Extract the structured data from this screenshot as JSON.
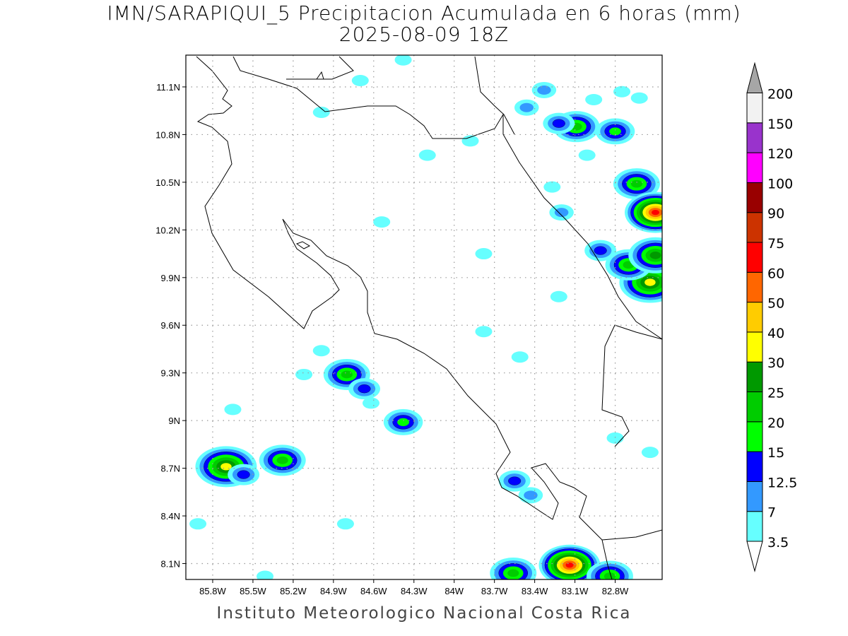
{
  "title_line1": "IMN/SARAPIQUI_5 Precipitacion Acumulada en 6 horas (mm)",
  "title_line2": "2025-08-09 18Z",
  "footer": "Instituto Meteorologico Nacional Costa Rica",
  "chart_data": {
    "type": "heatmap",
    "title": "IMN/SARAPIQUI_5 Precipitacion Acumulada en 6 horas (mm)",
    "subtitle": "2025-08-09 18Z",
    "xlim": [
      -86.0,
      -82.45
    ],
    "ylim": [
      8.0,
      11.3
    ],
    "grid": true,
    "x_ticks": [
      {
        "v": -85.8,
        "label": "85.8W"
      },
      {
        "v": -85.5,
        "label": "85.5W"
      },
      {
        "v": -85.2,
        "label": "85.2W"
      },
      {
        "v": -84.9,
        "label": "84.9W"
      },
      {
        "v": -84.6,
        "label": "84.6W"
      },
      {
        "v": -84.3,
        "label": "84.3W"
      },
      {
        "v": -84.0,
        "label": "84W"
      },
      {
        "v": -83.7,
        "label": "83.7W"
      },
      {
        "v": -83.4,
        "label": "83.4W"
      },
      {
        "v": -83.1,
        "label": "83.1W"
      },
      {
        "v": -82.8,
        "label": "82.8W"
      }
    ],
    "y_ticks": [
      {
        "v": 11.1,
        "label": "11.1N"
      },
      {
        "v": 10.8,
        "label": "10.8N"
      },
      {
        "v": 10.5,
        "label": "10.5N"
      },
      {
        "v": 10.2,
        "label": "10.2N"
      },
      {
        "v": 9.9,
        "label": "9.9N"
      },
      {
        "v": 9.6,
        "label": "9.6N"
      },
      {
        "v": 9.3,
        "label": "9.3N"
      },
      {
        "v": 9.0,
        "label": "9N"
      },
      {
        "v": 8.7,
        "label": "8.7N"
      },
      {
        "v": 8.4,
        "label": "8.4N"
      },
      {
        "v": 8.1,
        "label": "8.1N"
      }
    ],
    "colorbar": {
      "levels": [
        "3.5",
        "7",
        "12.5",
        "15",
        "20",
        "25",
        "30",
        "40",
        "50",
        "60",
        "75",
        "90",
        "100",
        "120",
        "150",
        "200"
      ],
      "colors": [
        "#66ffff",
        "#3399ff",
        "#0000ff",
        "#00ff00",
        "#00cc00",
        "#009900",
        "#ffff00",
        "#ffcc00",
        "#ff6600",
        "#ff0000",
        "#cc3300",
        "#990000",
        "#ff00ff",
        "#9933cc",
        "#f2f2f2"
      ],
      "over_color": "#a6a6a6",
      "under_color": "#ffffff"
    },
    "precip_cells": [
      {
        "lon": -84.38,
        "lat": 11.27,
        "mm": 5
      },
      {
        "lon": -84.7,
        "lat": 11.14,
        "mm": 5
      },
      {
        "lon": -84.99,
        "lat": 10.94,
        "mm": 4
      },
      {
        "lon": -83.33,
        "lat": 11.08,
        "mm": 8
      },
      {
        "lon": -83.46,
        "lat": 10.97,
        "mm": 8
      },
      {
        "lon": -83.09,
        "lat": 10.85,
        "mm": 22
      },
      {
        "lon": -83.22,
        "lat": 10.87,
        "mm": 14
      },
      {
        "lon": -82.8,
        "lat": 10.82,
        "mm": 16
      },
      {
        "lon": -82.75,
        "lat": 11.07,
        "mm": 5
      },
      {
        "lon": -82.62,
        "lat": 11.03,
        "mm": 5
      },
      {
        "lon": -82.96,
        "lat": 11.02,
        "mm": 5
      },
      {
        "lon": -83.01,
        "lat": 10.67,
        "mm": 5
      },
      {
        "lon": -83.88,
        "lat": 10.76,
        "mm": 4
      },
      {
        "lon": -84.2,
        "lat": 10.67,
        "mm": 4
      },
      {
        "lon": -83.27,
        "lat": 10.47,
        "mm": 5
      },
      {
        "lon": -83.2,
        "lat": 10.31,
        "mm": 10
      },
      {
        "lon": -82.64,
        "lat": 10.49,
        "mm": 22
      },
      {
        "lon": -82.5,
        "lat": 10.31,
        "mm": 70
      },
      {
        "lon": -82.54,
        "lat": 9.87,
        "mm": 35
      },
      {
        "lon": -82.7,
        "lat": 9.98,
        "mm": 20
      },
      {
        "lon": -82.91,
        "lat": 10.07,
        "mm": 13
      },
      {
        "lon": -82.5,
        "lat": 10.04,
        "mm": 25
      },
      {
        "lon": -84.8,
        "lat": 9.29,
        "mm": 20
      },
      {
        "lon": -84.67,
        "lat": 9.2,
        "mm": 14
      },
      {
        "lon": -84.62,
        "lat": 9.11,
        "mm": 6
      },
      {
        "lon": -84.38,
        "lat": 8.99,
        "mm": 18
      },
      {
        "lon": -85.7,
        "lat": 8.71,
        "mm": 32
      },
      {
        "lon": -85.57,
        "lat": 8.66,
        "mm": 14
      },
      {
        "lon": -85.28,
        "lat": 8.75,
        "mm": 22
      },
      {
        "lon": -83.56,
        "lat": 8.04,
        "mm": 22
      },
      {
        "lon": -83.14,
        "lat": 8.09,
        "mm": 70
      },
      {
        "lon": -82.84,
        "lat": 8.02,
        "mm": 20
      },
      {
        "lon": -83.55,
        "lat": 8.62,
        "mm": 13
      },
      {
        "lon": -83.43,
        "lat": 8.53,
        "mm": 12
      },
      {
        "lon": -84.81,
        "lat": 8.35,
        "mm": 5
      },
      {
        "lon": -83.78,
        "lat": 10.05,
        "mm": 5
      },
      {
        "lon": -83.78,
        "lat": 9.56,
        "mm": 5
      },
      {
        "lon": -85.41,
        "lat": 8.02,
        "mm": 5
      },
      {
        "lon": -85.91,
        "lat": 8.35,
        "mm": 5
      },
      {
        "lon": -85.65,
        "lat": 9.07,
        "mm": 5
      },
      {
        "lon": -85.12,
        "lat": 9.29,
        "mm": 4
      },
      {
        "lon": -84.99,
        "lat": 9.44,
        "mm": 4
      },
      {
        "lon": -84.54,
        "lat": 10.25,
        "mm": 4
      },
      {
        "lon": -83.22,
        "lat": 9.78,
        "mm": 4
      },
      {
        "lon": -83.51,
        "lat": 9.4,
        "mm": 4
      },
      {
        "lon": -82.8,
        "lat": 8.89,
        "mm": 5
      },
      {
        "lon": -82.54,
        "lat": 8.8,
        "mm": 5
      }
    ]
  }
}
